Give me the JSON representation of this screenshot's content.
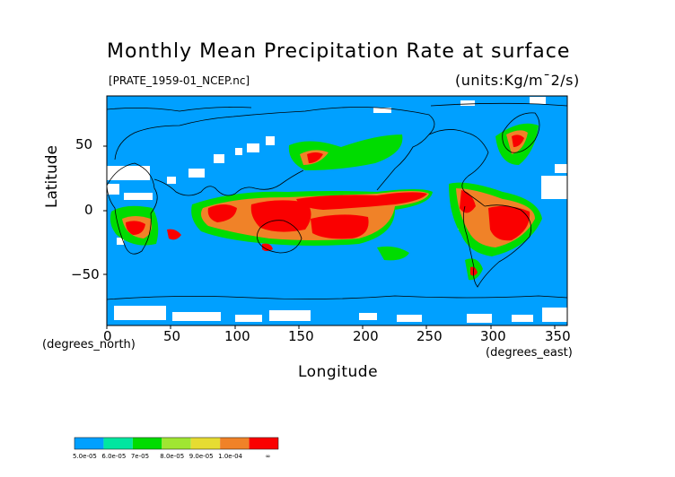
{
  "title": "Monthly Mean Precipitation Rate at surface",
  "file_label": "[PRATE_1959-01_NCEP.nc]",
  "units_label": "(units:Kg/m¯2/s)",
  "axes": {
    "xlabel": "Longitude",
    "ylabel": "Latitude",
    "x_units": "(degrees_east)",
    "y_units": "(degrees_north)",
    "x_ticks": [
      "0",
      "50",
      "100",
      "150",
      "200",
      "250",
      "300",
      "350"
    ],
    "y_ticks": [
      "50",
      "0",
      "−50"
    ],
    "xlim": [
      0,
      360
    ],
    "ylim": [
      -90,
      90
    ]
  },
  "legend": {
    "labels": [
      "5.0e-05",
      "6.0e-05",
      "7e-05",
      "8.0e-05",
      "9.0e-05",
      "1.0e-04",
      "∞"
    ]
  },
  "colors": {
    "ocean_base": "#00a0ff",
    "missing": "#ffffff",
    "bins": [
      "#00a0ff",
      "#00e6a0",
      "#00dc00",
      "#a0e632",
      "#e6dc32",
      "#f08228",
      "#fa0000"
    ]
  }
}
